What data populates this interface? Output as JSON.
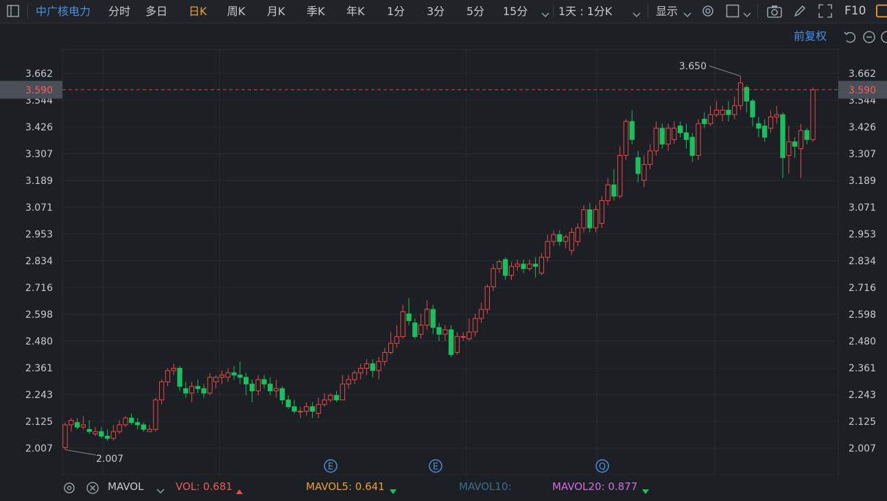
{
  "toolbar": {
    "stock_name": "中广核电力",
    "tabs": [
      "分时",
      "多日",
      "日K",
      "周K",
      "月K",
      "季K",
      "年K",
      "1分",
      "3分",
      "5分",
      "15分"
    ],
    "active_tab": "日K",
    "period_select": "1天 : 1分K",
    "display_label": "显示",
    "f10_label": "F10"
  },
  "subbar": {
    "adjust_label": "前复权"
  },
  "colors": {
    "up": "#f04a4a",
    "down": "#18c15e",
    "bg": "#1c1f24",
    "grid": "#2a2e35",
    "last_price": "#e04848",
    "accent": "#f0a030",
    "link": "#4a90e2"
  },
  "chart_data": {
    "type": "candlestick",
    "y_ticks": [
      "3.662",
      "3.544",
      "3.426",
      "3.307",
      "3.189",
      "3.071",
      "2.953",
      "2.834",
      "2.716",
      "2.598",
      "2.480",
      "2.361",
      "2.243",
      "2.125",
      "2.007"
    ],
    "ylim": [
      2.007,
      3.662
    ],
    "last_price": "3.590",
    "high_annotation": "3.650",
    "low_annotation": "2.007",
    "event_markers": [
      "E",
      "E",
      "Q"
    ],
    "candles": [
      [
        2.01,
        2.11,
        2.12,
        2.0
      ],
      [
        2.11,
        2.13,
        2.14,
        2.08
      ],
      [
        2.12,
        2.1,
        2.14,
        2.09
      ],
      [
        2.1,
        2.11,
        2.15,
        2.09
      ],
      [
        2.09,
        2.08,
        2.13,
        2.07
      ],
      [
        2.07,
        2.08,
        2.1,
        2.06
      ],
      [
        2.08,
        2.06,
        2.1,
        2.05
      ],
      [
        2.06,
        2.05,
        2.09,
        2.04
      ],
      [
        2.05,
        2.08,
        2.11,
        2.04
      ],
      [
        2.08,
        2.11,
        2.13,
        2.07
      ],
      [
        2.11,
        2.14,
        2.15,
        2.1
      ],
      [
        2.14,
        2.12,
        2.16,
        2.11
      ],
      [
        2.12,
        2.11,
        2.14,
        2.09
      ],
      [
        2.11,
        2.09,
        2.12,
        2.08
      ],
      [
        2.08,
        2.09,
        2.11,
        2.08
      ],
      [
        2.09,
        2.22,
        2.23,
        2.08
      ],
      [
        2.22,
        2.3,
        2.31,
        2.2
      ],
      [
        2.3,
        2.35,
        2.36,
        2.28
      ],
      [
        2.35,
        2.36,
        2.38,
        2.33
      ],
      [
        2.36,
        2.28,
        2.37,
        2.26
      ],
      [
        2.27,
        2.25,
        2.3,
        2.23
      ],
      [
        2.25,
        2.28,
        2.3,
        2.21
      ],
      [
        2.28,
        2.27,
        2.31,
        2.25
      ],
      [
        2.27,
        2.25,
        2.29,
        2.23
      ],
      [
        2.25,
        2.32,
        2.34,
        2.24
      ],
      [
        2.3,
        2.32,
        2.33,
        2.27
      ],
      [
        2.32,
        2.33,
        2.35,
        2.29
      ],
      [
        2.32,
        2.34,
        2.36,
        2.3
      ],
      [
        2.34,
        2.33,
        2.37,
        2.31
      ],
      [
        2.33,
        2.32,
        2.39,
        2.29
      ],
      [
        2.32,
        2.29,
        2.34,
        2.24
      ],
      [
        2.29,
        2.26,
        2.31,
        2.21
      ],
      [
        2.26,
        2.31,
        2.33,
        2.24
      ],
      [
        2.31,
        2.29,
        2.33,
        2.27
      ],
      [
        2.29,
        2.26,
        2.32,
        2.24
      ],
      [
        2.26,
        2.27,
        2.31,
        2.23
      ],
      [
        2.27,
        2.22,
        2.28,
        2.2
      ],
      [
        2.22,
        2.19,
        2.24,
        2.18
      ],
      [
        2.19,
        2.17,
        2.22,
        2.16
      ],
      [
        2.17,
        2.17,
        2.19,
        2.14
      ],
      [
        2.17,
        2.19,
        2.21,
        2.15
      ],
      [
        2.19,
        2.17,
        2.21,
        2.14
      ],
      [
        2.16,
        2.2,
        2.23,
        2.14
      ],
      [
        2.2,
        2.22,
        2.25,
        2.19
      ],
      [
        2.22,
        2.24,
        2.25,
        2.21
      ],
      [
        2.24,
        2.22,
        2.26,
        2.21
      ],
      [
        2.22,
        2.29,
        2.33,
        2.22
      ],
      [
        2.29,
        2.31,
        2.33,
        2.27
      ],
      [
        2.31,
        2.34,
        2.35,
        2.29
      ],
      [
        2.34,
        2.36,
        2.38,
        2.31
      ],
      [
        2.36,
        2.38,
        2.4,
        2.33
      ],
      [
        2.38,
        2.35,
        2.4,
        2.32
      ],
      [
        2.35,
        2.39,
        2.41,
        2.31
      ],
      [
        2.39,
        2.43,
        2.45,
        2.37
      ],
      [
        2.43,
        2.47,
        2.52,
        2.42
      ],
      [
        2.47,
        2.5,
        2.55,
        2.45
      ],
      [
        2.5,
        2.61,
        2.64,
        2.49
      ],
      [
        2.6,
        2.57,
        2.67,
        2.55
      ],
      [
        2.56,
        2.5,
        2.58,
        2.49
      ],
      [
        2.51,
        2.55,
        2.6,
        2.49
      ],
      [
        2.55,
        2.62,
        2.66,
        2.53
      ],
      [
        2.62,
        2.54,
        2.64,
        2.51
      ],
      [
        2.54,
        2.51,
        2.56,
        2.48
      ],
      [
        2.51,
        2.53,
        2.55,
        2.48
      ],
      [
        2.53,
        2.42,
        2.55,
        2.41
      ],
      [
        2.43,
        2.5,
        2.52,
        2.42
      ],
      [
        2.5,
        2.5,
        2.52,
        2.48
      ],
      [
        2.49,
        2.52,
        2.58,
        2.48
      ],
      [
        2.52,
        2.58,
        2.6,
        2.5
      ],
      [
        2.58,
        2.62,
        2.65,
        2.56
      ],
      [
        2.62,
        2.72,
        2.73,
        2.6
      ],
      [
        2.72,
        2.8,
        2.82,
        2.7
      ],
      [
        2.8,
        2.83,
        2.84,
        2.78
      ],
      [
        2.84,
        2.77,
        2.85,
        2.75
      ],
      [
        2.77,
        2.81,
        2.83,
        2.75
      ],
      [
        2.81,
        2.82,
        2.84,
        2.79
      ],
      [
        2.82,
        2.8,
        2.84,
        2.78
      ],
      [
        2.8,
        2.82,
        2.84,
        2.79
      ],
      [
        2.82,
        2.81,
        2.85,
        2.76
      ],
      [
        2.78,
        2.85,
        2.87,
        2.77
      ],
      [
        2.85,
        2.92,
        2.95,
        2.83
      ],
      [
        2.92,
        2.95,
        2.97,
        2.9
      ],
      [
        2.95,
        2.92,
        2.97,
        2.9
      ],
      [
        2.92,
        2.94,
        2.95,
        2.89
      ],
      [
        2.88,
        2.96,
        2.98,
        2.86
      ],
      [
        2.92,
        2.98,
        3.0,
        2.9
      ],
      [
        2.98,
        3.06,
        3.08,
        2.96
      ],
      [
        3.06,
        2.98,
        3.09,
        2.96
      ],
      [
        2.98,
        3.06,
        3.08,
        2.96
      ],
      [
        3.0,
        3.1,
        3.12,
        2.98
      ],
      [
        3.1,
        3.17,
        3.2,
        3.08
      ],
      [
        3.17,
        3.12,
        3.24,
        3.1
      ],
      [
        3.12,
        3.3,
        3.34,
        3.11
      ],
      [
        3.3,
        3.45,
        3.46,
        3.28
      ],
      [
        3.45,
        3.37,
        3.5,
        3.35
      ],
      [
        3.29,
        3.22,
        3.32,
        3.18
      ],
      [
        3.19,
        3.26,
        3.3,
        3.16
      ],
      [
        3.26,
        3.32,
        3.35,
        3.24
      ],
      [
        3.32,
        3.42,
        3.45,
        3.3
      ],
      [
        3.42,
        3.35,
        3.44,
        3.33
      ],
      [
        3.35,
        3.42,
        3.44,
        3.32
      ],
      [
        3.37,
        3.42,
        3.45,
        3.35
      ],
      [
        3.43,
        3.4,
        3.45,
        3.38
      ],
      [
        3.4,
        3.37,
        3.44,
        3.33
      ],
      [
        3.38,
        3.3,
        3.4,
        3.27
      ],
      [
        3.3,
        3.44,
        3.46,
        3.28
      ],
      [
        3.46,
        3.44,
        3.49,
        3.42
      ],
      [
        3.44,
        3.48,
        3.52,
        3.43
      ],
      [
        3.48,
        3.5,
        3.54,
        3.47
      ],
      [
        3.48,
        3.5,
        3.52,
        3.45
      ],
      [
        3.5,
        3.48,
        3.54,
        3.45
      ],
      [
        3.48,
        3.52,
        3.56,
        3.46
      ],
      [
        3.52,
        3.62,
        3.65,
        3.5
      ],
      [
        3.6,
        3.54,
        3.61,
        3.49
      ],
      [
        3.54,
        3.47,
        3.55,
        3.43
      ],
      [
        3.44,
        3.42,
        3.47,
        3.38
      ],
      [
        3.43,
        3.38,
        3.46,
        3.36
      ],
      [
        3.42,
        3.47,
        3.5,
        3.4
      ],
      [
        3.47,
        3.48,
        3.52,
        3.44
      ],
      [
        3.48,
        3.29,
        3.49,
        3.2
      ],
      [
        3.3,
        3.36,
        3.43,
        3.22
      ],
      [
        3.36,
        3.34,
        3.38,
        3.29
      ],
      [
        3.33,
        3.41,
        3.44,
        3.2
      ],
      [
        3.41,
        3.37,
        3.42,
        3.35
      ],
      [
        3.37,
        3.59,
        3.6,
        3.36
      ]
    ]
  },
  "bottom": {
    "indicator": "MAVOL",
    "vol_label": "VOL: ",
    "vol_value": "0.681",
    "mavol5_label": "MAVOL5: ",
    "mavol5_value": "0.641",
    "mavol10_label": "MAVOL10:",
    "mavol20_label": "MAVOL20: ",
    "mavol20_value": "0.877"
  }
}
